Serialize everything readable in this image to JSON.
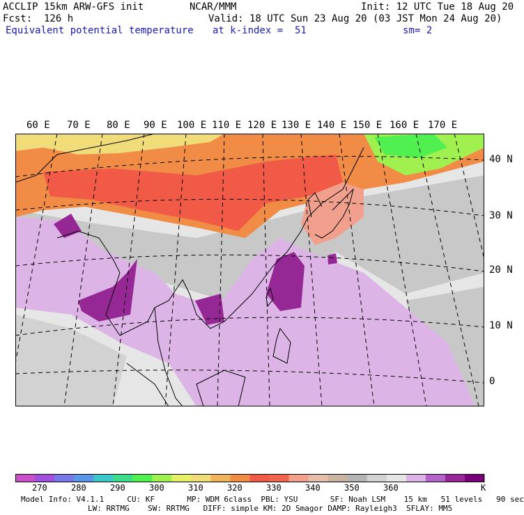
{
  "header": {
    "line1_left": "ACCLIP 15km ARW-GFS init",
    "line1_center": "NCAR/MMM",
    "line1_right": "Init: 12 UTC Tue 18 Aug 20",
    "line2_left": "Fcst:  126 h",
    "line2_right": "Valid: 18 UTC Sun 23 Aug 20 (03 JST Mon 24 Aug 20)",
    "line3_field": "Equivalent potential temperature",
    "line3_level": "at k-index =  51",
    "line3_smooth": "sm= 2"
  },
  "map": {
    "longitude_labels": [
      "60 E",
      "70 E",
      "80 E",
      "90 E",
      "100 E",
      "110 E",
      "120 E",
      "130 E",
      "140 E",
      "150 E",
      "160 E",
      "170 E"
    ],
    "latitude_labels": [
      "40 N",
      "30 N",
      "20 N",
      "10 N",
      "0"
    ]
  },
  "colorbar": {
    "unit": "K",
    "tick_labels": [
      "270",
      "280",
      "290",
      "300",
      "310",
      "320",
      "330",
      "340",
      "350",
      "360"
    ],
    "colors": [
      "#c850c8",
      "#a050dc",
      "#7878e6",
      "#5a96e6",
      "#3cc8c8",
      "#3cdc8c",
      "#50f050",
      "#a0f050",
      "#e6f064",
      "#f0dc78",
      "#f0b45a",
      "#f08c46",
      "#f05a46",
      "#f06450",
      "#f0a08c",
      "#e6beaa",
      "#c8b4a0",
      "#b4b4b4",
      "#d2d2d2",
      "#e6e6e6",
      "#dcb4e6",
      "#b464c8",
      "#962896",
      "#780078"
    ]
  },
  "footer": {
    "line1": "Model Info: V4.1.1     CU: KF       MP: WDM 6class  PBL: YSU       SF: Noah LSM    15 km   51 levels   90 sec",
    "line2": "LW: RRTMG    SW: RRTMG   DIFF: simple KM: 2D Smagor DAMP: Rayleigh3  SFLAY: MM5"
  }
}
